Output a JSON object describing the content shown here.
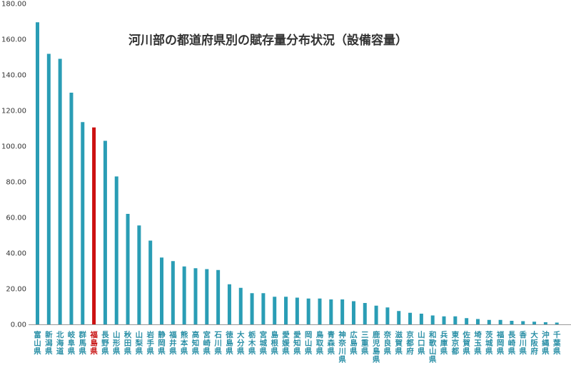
{
  "chart_data": {
    "type": "bar",
    "title": "河川部の都道府県別の賦存量分布状況（設備容量）",
    "xlabel": "",
    "ylabel": "",
    "ylim": [
      0,
      180
    ],
    "yticks": [
      "0.00",
      "20.00",
      "40.00",
      "60.00",
      "80.00",
      "100.00",
      "120.00",
      "140.00",
      "160.00",
      "180.00"
    ],
    "grid": false,
    "legend": "none",
    "colors": {
      "bar": "#2a9db5",
      "highlight": "#cc1111",
      "axis": "#999999"
    },
    "highlight_category": "福島県",
    "categories": [
      "富山県",
      "新潟県",
      "北海道",
      "岐阜県",
      "群馬県",
      "福島県",
      "長野県",
      "山形県",
      "秋田県",
      "山梨県",
      "岩手県",
      "静岡県",
      "福井県",
      "熊本県",
      "高知県",
      "宮崎県",
      "石川県",
      "徳島県",
      "大分県",
      "栃木県",
      "宮城県",
      "島根県",
      "愛媛県",
      "愛知県",
      "岡山県",
      "鳥取県",
      "青森県",
      "神奈川県",
      "広島県",
      "三重県",
      "鹿児島県",
      "奈良県",
      "滋賀県",
      "京都府",
      "山口県",
      "和歌山県",
      "兵庫県",
      "東京都",
      "佐賀県",
      "埼玉県",
      "茨城県",
      "福岡県",
      "長崎県",
      "香川県",
      "大阪府",
      "沖縄県",
      "千葉県"
    ],
    "values": [
      169.5,
      151.8,
      149.0,
      130.0,
      113.5,
      110.5,
      103.0,
      83.0,
      62.0,
      55.5,
      47.0,
      37.5,
      35.5,
      32.5,
      31.5,
      31.0,
      30.5,
      22.5,
      20.5,
      17.5,
      17.5,
      15.5,
      15.5,
      15.0,
      14.5,
      14.5,
      14.0,
      14.0,
      13.0,
      12.0,
      10.5,
      9.5,
      7.5,
      6.5,
      6.0,
      5.0,
      4.5,
      4.5,
      3.5,
      3.0,
      2.5,
      2.5,
      2.0,
      1.8,
      1.5,
      1.2,
      1.0
    ]
  }
}
